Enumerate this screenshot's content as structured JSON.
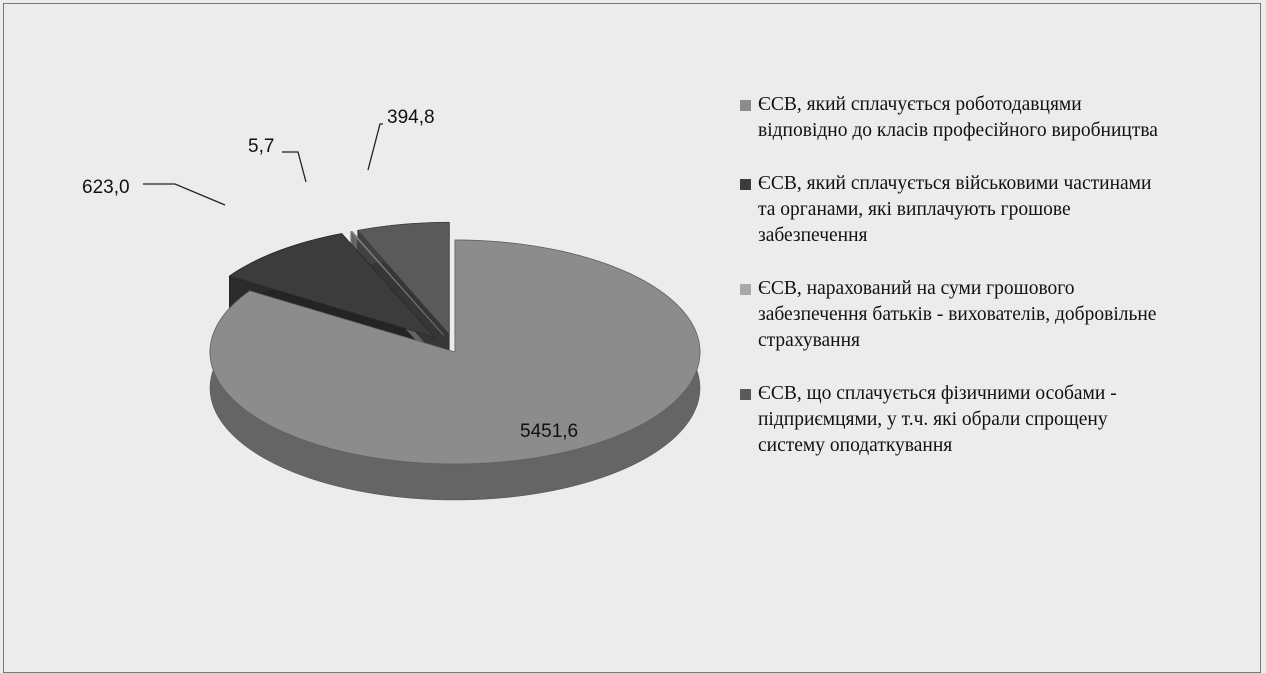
{
  "chart_data": {
    "type": "pie",
    "categories": [
      "ЄСВ, який сплачується роботодавцями відповідно до класів професійного виробництва",
      "ЄСВ, який сплачується військовими частинами та органами, які виплачують грошове забезпечення",
      "ЄСВ, нарахований на суми грошового забезпечення батьків - вихователів, добровільне страхування",
      "ЄСВ, що сплачується фізичними особами - підприємцями, у т.ч. які обрали спрощену систему оподаткування"
    ],
    "values": [
      5451.6,
      623.0,
      5.7,
      394.8
    ],
    "value_labels": [
      "5451,6",
      "623,0",
      "5,7",
      "394,8"
    ],
    "colors": [
      "#8c8c8c",
      "#3c3c3c",
      "#a8a8a8",
      "#5a5a5a"
    ]
  }
}
